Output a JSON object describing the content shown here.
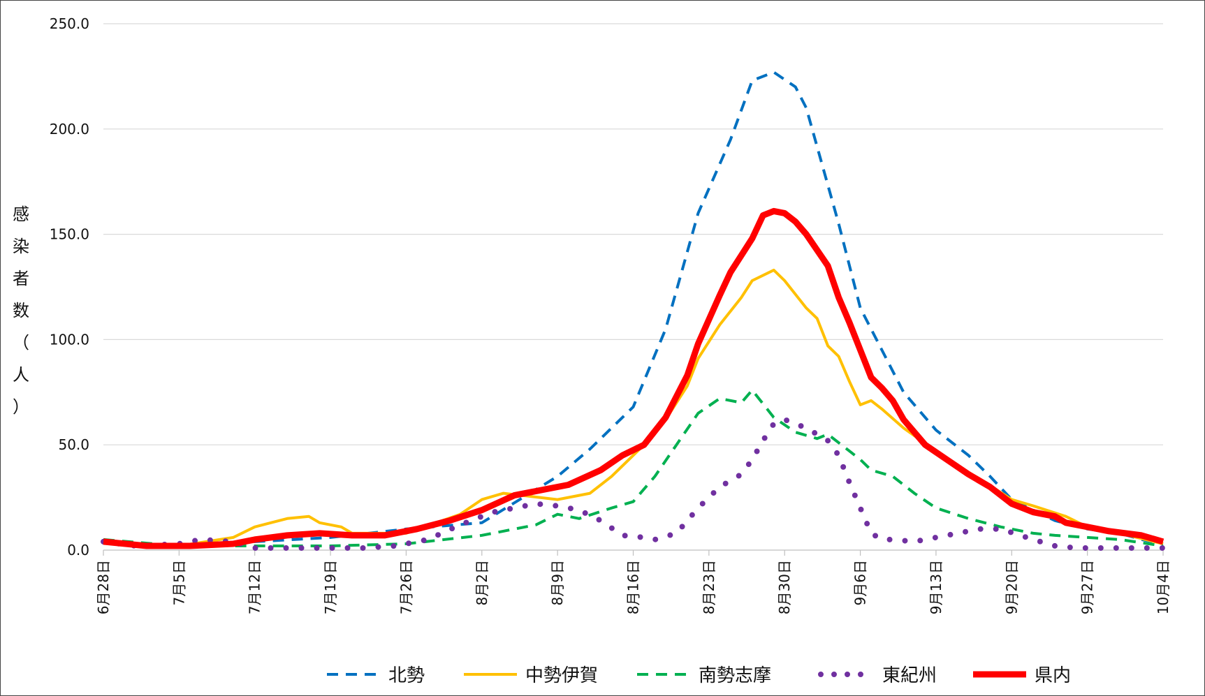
{
  "chart_data": {
    "type": "line",
    "title": "",
    "xlabel": "",
    "ylabel": "感染者数（人）",
    "ylim": [
      0,
      250
    ],
    "y_ticks": [
      "0.0",
      "50.0",
      "100.0",
      "150.0",
      "200.0",
      "250.0"
    ],
    "x_ticks": [
      "6月28日",
      "7月5日",
      "7月12日",
      "7月19日",
      "7月26日",
      "8月2日",
      "8月9日",
      "8月16日",
      "8月23日",
      "8月30日",
      "9月6日",
      "9月13日",
      "9月20日",
      "9月27日",
      "10月4日"
    ],
    "x_start": "2021-06-28",
    "x_end": "2021-10-04",
    "grid": true,
    "legend_position": "bottom",
    "series": [
      {
        "name": "北勢",
        "color": "#0070C0",
        "dash": "dash",
        "points": [
          [
            0,
            4
          ],
          [
            7,
            2
          ],
          [
            14,
            4
          ],
          [
            21,
            6
          ],
          [
            28,
            10
          ],
          [
            35,
            13
          ],
          [
            42,
            35
          ],
          [
            45,
            48
          ],
          [
            49,
            68
          ],
          [
            52,
            105
          ],
          [
            55,
            160
          ],
          [
            58,
            195
          ],
          [
            60,
            223
          ],
          [
            62,
            227
          ],
          [
            64,
            220
          ],
          [
            65,
            210
          ],
          [
            68,
            155
          ],
          [
            70,
            115
          ],
          [
            72,
            95
          ],
          [
            74,
            75
          ],
          [
            77,
            57
          ],
          [
            80,
            45
          ],
          [
            82,
            35
          ],
          [
            84,
            24
          ],
          [
            86,
            19
          ],
          [
            88,
            14
          ],
          [
            91,
            10
          ],
          [
            94,
            8
          ],
          [
            96,
            5
          ],
          [
            98,
            3
          ]
        ]
      },
      {
        "name": "中勢伊賀",
        "color": "#FFC000",
        "dash": "solid",
        "points": [
          [
            0,
            4
          ],
          [
            7,
            2
          ],
          [
            12,
            6
          ],
          [
            14,
            11
          ],
          [
            17,
            15
          ],
          [
            19,
            16
          ],
          [
            20,
            13
          ],
          [
            22,
            11
          ],
          [
            23,
            8
          ],
          [
            28,
            8
          ],
          [
            33,
            17
          ],
          [
            35,
            24
          ],
          [
            37,
            27
          ],
          [
            42,
            24
          ],
          [
            45,
            27
          ],
          [
            47,
            35
          ],
          [
            50,
            50
          ],
          [
            52,
            62
          ],
          [
            54,
            78
          ],
          [
            55,
            91
          ],
          [
            57,
            107
          ],
          [
            59,
            120
          ],
          [
            60,
            128
          ],
          [
            62,
            133
          ],
          [
            63,
            128
          ],
          [
            65,
            115
          ],
          [
            66,
            110
          ],
          [
            67,
            97
          ],
          [
            68,
            92
          ],
          [
            69,
            80
          ],
          [
            70,
            69
          ],
          [
            71,
            71
          ],
          [
            72,
            67
          ],
          [
            74,
            58
          ],
          [
            77,
            47
          ],
          [
            79,
            40
          ],
          [
            81,
            34
          ],
          [
            84,
            24
          ],
          [
            86,
            21
          ],
          [
            89,
            16
          ],
          [
            91,
            11
          ],
          [
            94,
            8
          ],
          [
            98,
            3
          ]
        ]
      },
      {
        "name": "南勢志摩",
        "color": "#00B050",
        "dash": "dash",
        "points": [
          [
            0,
            5
          ],
          [
            7,
            2
          ],
          [
            14,
            2
          ],
          [
            21,
            2
          ],
          [
            28,
            3
          ],
          [
            35,
            7
          ],
          [
            40,
            12
          ],
          [
            42,
            17
          ],
          [
            44,
            15
          ],
          [
            47,
            20
          ],
          [
            49,
            23
          ],
          [
            51,
            35
          ],
          [
            53,
            50
          ],
          [
            55,
            65
          ],
          [
            57,
            72
          ],
          [
            59,
            70
          ],
          [
            60,
            76
          ],
          [
            62,
            63
          ],
          [
            64,
            56
          ],
          [
            66,
            53
          ],
          [
            67,
            55
          ],
          [
            69,
            47
          ],
          [
            70,
            43
          ],
          [
            71,
            38
          ],
          [
            73,
            35
          ],
          [
            75,
            27
          ],
          [
            77,
            20
          ],
          [
            80,
            15
          ],
          [
            83,
            11
          ],
          [
            86,
            8
          ],
          [
            88,
            7
          ],
          [
            91,
            6
          ],
          [
            94,
            5
          ],
          [
            98,
            2
          ]
        ]
      },
      {
        "name": "東紀州",
        "color": "#7030A0",
        "dash": "dot",
        "points": [
          [
            0,
            4
          ],
          [
            3,
            2
          ],
          [
            7,
            3
          ],
          [
            9,
            5
          ],
          [
            12,
            4
          ],
          [
            14,
            1
          ],
          [
            17,
            1
          ],
          [
            21,
            1
          ],
          [
            24,
            1
          ],
          [
            27,
            2
          ],
          [
            30,
            5
          ],
          [
            33,
            12
          ],
          [
            36,
            18
          ],
          [
            38,
            20
          ],
          [
            40,
            22
          ],
          [
            42,
            21
          ],
          [
            44,
            19
          ],
          [
            46,
            14
          ],
          [
            48,
            7
          ],
          [
            50,
            6
          ],
          [
            51,
            5
          ],
          [
            53,
            8
          ],
          [
            55,
            20
          ],
          [
            57,
            30
          ],
          [
            59,
            36
          ],
          [
            60,
            43
          ],
          [
            61,
            52
          ],
          [
            62,
            60
          ],
          [
            63,
            62
          ],
          [
            65,
            58
          ],
          [
            66,
            55
          ],
          [
            67,
            52
          ],
          [
            68,
            45
          ],
          [
            69,
            32
          ],
          [
            70,
            20
          ],
          [
            71,
            8
          ],
          [
            72,
            5
          ],
          [
            73,
            5
          ],
          [
            75,
            4
          ],
          [
            77,
            6
          ],
          [
            79,
            8
          ],
          [
            81,
            10
          ],
          [
            83,
            10
          ],
          [
            86,
            5
          ],
          [
            88,
            2
          ],
          [
            90,
            1
          ],
          [
            92,
            1
          ],
          [
            94,
            1
          ],
          [
            96,
            1
          ],
          [
            98,
            1
          ]
        ]
      },
      {
        "name": "県内",
        "color": "#FF0000",
        "dash": "solid",
        "points": [
          [
            0,
            4
          ],
          [
            4,
            2
          ],
          [
            8,
            2
          ],
          [
            12,
            3
          ],
          [
            14,
            5
          ],
          [
            17,
            7
          ],
          [
            20,
            8
          ],
          [
            23,
            7
          ],
          [
            26,
            7
          ],
          [
            29,
            10
          ],
          [
            32,
            14
          ],
          [
            35,
            19
          ],
          [
            38,
            26
          ],
          [
            41,
            29
          ],
          [
            43,
            31
          ],
          [
            46,
            38
          ],
          [
            48,
            45
          ],
          [
            50,
            50
          ],
          [
            52,
            63
          ],
          [
            54,
            83
          ],
          [
            55,
            98
          ],
          [
            57,
            121
          ],
          [
            58,
            132
          ],
          [
            59,
            140
          ],
          [
            60,
            148
          ],
          [
            61,
            159
          ],
          [
            62,
            161
          ],
          [
            63,
            160
          ],
          [
            64,
            156
          ],
          [
            65,
            150
          ],
          [
            67,
            135
          ],
          [
            68,
            120
          ],
          [
            69,
            108
          ],
          [
            70,
            95
          ],
          [
            71,
            82
          ],
          [
            72,
            77
          ],
          [
            73,
            71
          ],
          [
            74,
            62
          ],
          [
            76,
            50
          ],
          [
            78,
            43
          ],
          [
            80,
            36
          ],
          [
            82,
            30
          ],
          [
            84,
            22
          ],
          [
            86,
            18
          ],
          [
            88,
            16
          ],
          [
            89,
            13
          ],
          [
            91,
            11
          ],
          [
            93,
            9
          ],
          [
            96,
            7
          ],
          [
            98,
            4
          ]
        ]
      }
    ]
  }
}
